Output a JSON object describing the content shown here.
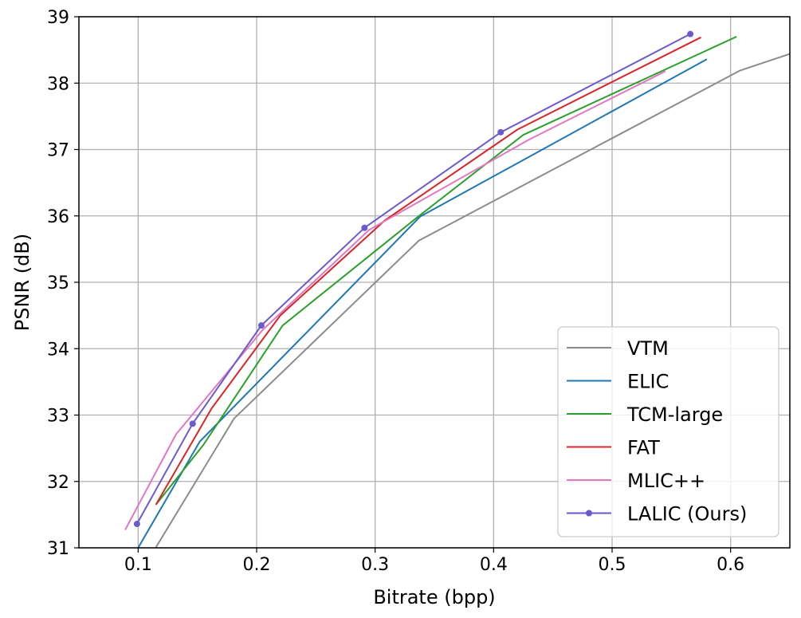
{
  "chart_data": {
    "type": "line",
    "xlabel": "Bitrate (bpp)",
    "ylabel": "PSNR (dB)",
    "xlim": [
      0.05,
      0.65
    ],
    "ylim": [
      31,
      39
    ],
    "xticks": [
      0.1,
      0.2,
      0.3,
      0.4,
      0.5,
      0.6
    ],
    "xtick_labels": [
      "0.1",
      "0.2",
      "0.3",
      "0.4",
      "0.5",
      "0.6"
    ],
    "yticks": [
      31,
      32,
      33,
      34,
      35,
      36,
      37,
      38,
      39
    ],
    "ytick_labels": [
      "31",
      "32",
      "33",
      "34",
      "35",
      "36",
      "37",
      "38",
      "39"
    ],
    "grid": true,
    "legend_position": "bottom-right",
    "series": [
      {
        "name": "VTM",
        "color": "#8c8c8c",
        "marker": false,
        "x": [
          0.113,
          0.181,
          0.337,
          0.608,
          0.65
        ],
        "y": [
          30.95,
          32.95,
          35.63,
          38.19,
          38.44
        ]
      },
      {
        "name": "ELIC",
        "color": "#1f77b4",
        "marker": false,
        "x": [
          0.1,
          0.152,
          0.338,
          0.58
        ],
        "y": [
          31.0,
          32.6,
          35.99,
          38.36
        ]
      },
      {
        "name": "TCM-large",
        "color": "#2ca02c",
        "marker": false,
        "x": [
          0.115,
          0.155,
          0.222,
          0.335,
          0.425,
          0.605
        ],
        "y": [
          31.65,
          32.55,
          34.35,
          35.97,
          37.22,
          38.7
        ]
      },
      {
        "name": "FAT",
        "color": "#d62728",
        "marker": false,
        "x": [
          0.115,
          0.162,
          0.22,
          0.308,
          0.42,
          0.575
        ],
        "y": [
          31.65,
          33.1,
          34.5,
          35.93,
          37.3,
          38.69
        ]
      },
      {
        "name": "MLIC++",
        "color": "#e377c2",
        "marker": false,
        "x": [
          0.089,
          0.132,
          0.205,
          0.295,
          0.43,
          0.545
        ],
        "y": [
          31.27,
          32.71,
          34.28,
          35.79,
          37.15,
          38.18
        ]
      },
      {
        "name": "LALIC (Ours)",
        "color": "#6a5acd",
        "marker": true,
        "x": [
          0.099,
          0.146,
          0.204,
          0.291,
          0.406,
          0.566
        ],
        "y": [
          31.36,
          32.87,
          34.35,
          35.82,
          37.26,
          38.74
        ]
      }
    ]
  }
}
